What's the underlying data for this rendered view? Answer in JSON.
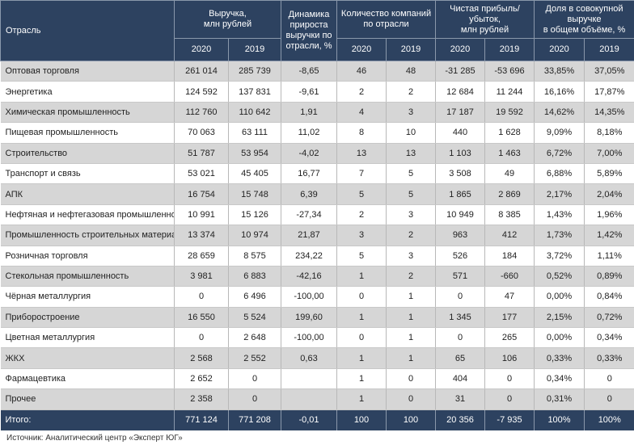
{
  "header": {
    "industry": "Отрасль",
    "groups": [
      "Выручка,\nмлн рублей",
      "Динамика\nприроста\nвыручки по\nотрасли, %",
      "Количество компаний\nпо отрасли",
      "Чистая прибыль/убыток,\nмлн рублей",
      "Доля в совокупной выручке\nв общем объёме, %"
    ],
    "years": [
      "2020",
      "2019",
      "2020",
      "2019",
      "2020",
      "2019",
      "2020",
      "2019"
    ]
  },
  "table": {
    "rows": [
      [
        "Оптовая торговля",
        "261 014",
        "285 739",
        "-8,65",
        "46",
        "48",
        "-31 285",
        "-53 696",
        "33,85%",
        "37,05%"
      ],
      [
        "Энергетика",
        "124 592",
        "137 831",
        "-9,61",
        "2",
        "2",
        "12 684",
        "11 244",
        "16,16%",
        "17,87%"
      ],
      [
        "Химическая промышленность",
        "112 760",
        "110 642",
        "1,91",
        "4",
        "3",
        "17 187",
        "19 592",
        "14,62%",
        "14,35%"
      ],
      [
        "Пищевая промышленность",
        "70 063",
        "63 111",
        "11,02",
        "8",
        "10",
        "440",
        "1 628",
        "9,09%",
        "8,18%"
      ],
      [
        "Строительство",
        "51 787",
        "53 954",
        "-4,02",
        "13",
        "13",
        "1 103",
        "1 463",
        "6,72%",
        "7,00%"
      ],
      [
        "Транспорт и связь",
        "53 021",
        "45 405",
        "16,77",
        "7",
        "5",
        "3 508",
        "49",
        "6,88%",
        "5,89%"
      ],
      [
        "АПК",
        "16 754",
        "15 748",
        "6,39",
        "5",
        "5",
        "1 865",
        "2 869",
        "2,17%",
        "2,04%"
      ],
      [
        "Нефтяная и нефтегазовая промышленность",
        "10 991",
        "15 126",
        "-27,34",
        "2",
        "3",
        "10 949",
        "8 385",
        "1,43%",
        "1,96%"
      ],
      [
        "Промышленность строительных материалов",
        "13 374",
        "10 974",
        "21,87",
        "3",
        "2",
        "963",
        "412",
        "1,73%",
        "1,42%"
      ],
      [
        "Розничная торговля",
        "28 659",
        "8 575",
        "234,22",
        "5",
        "3",
        "526",
        "184",
        "3,72%",
        "1,11%"
      ],
      [
        "Стекольная промышленность",
        "3 981",
        "6 883",
        "-42,16",
        "1",
        "2",
        "571",
        "-660",
        "0,52%",
        "0,89%"
      ],
      [
        "Чёрная металлургия",
        "0",
        "6 496",
        "-100,00",
        "0",
        "1",
        "0",
        "47",
        "0,00%",
        "0,84%"
      ],
      [
        "Приборостроение",
        "16 550",
        "5 524",
        "199,60",
        "1",
        "1",
        "1 345",
        "177",
        "2,15%",
        "0,72%"
      ],
      [
        "Цветная металлургия",
        "0",
        "2 648",
        "-100,00",
        "0",
        "1",
        "0",
        "265",
        "0,00%",
        "0,34%"
      ],
      [
        "ЖКХ",
        "2 568",
        "2 552",
        "0,63",
        "1",
        "1",
        "65",
        "106",
        "0,33%",
        "0,33%"
      ],
      [
        "Фармацевтика",
        "2 652",
        "0",
        null,
        "1",
        "0",
        "404",
        "0",
        "0,34%",
        "0"
      ],
      [
        "Прочее",
        "2 358",
        "0",
        null,
        "1",
        "0",
        "31",
        "0",
        "0,31%",
        "0"
      ]
    ],
    "total": [
      "Итого:",
      "771 124",
      "771 208",
      "-0,01",
      "100",
      "100",
      "20 356",
      "-7 935",
      "100%",
      "100%"
    ]
  },
  "source": "Источник: Аналитический центр «Эксперт ЮГ»"
}
